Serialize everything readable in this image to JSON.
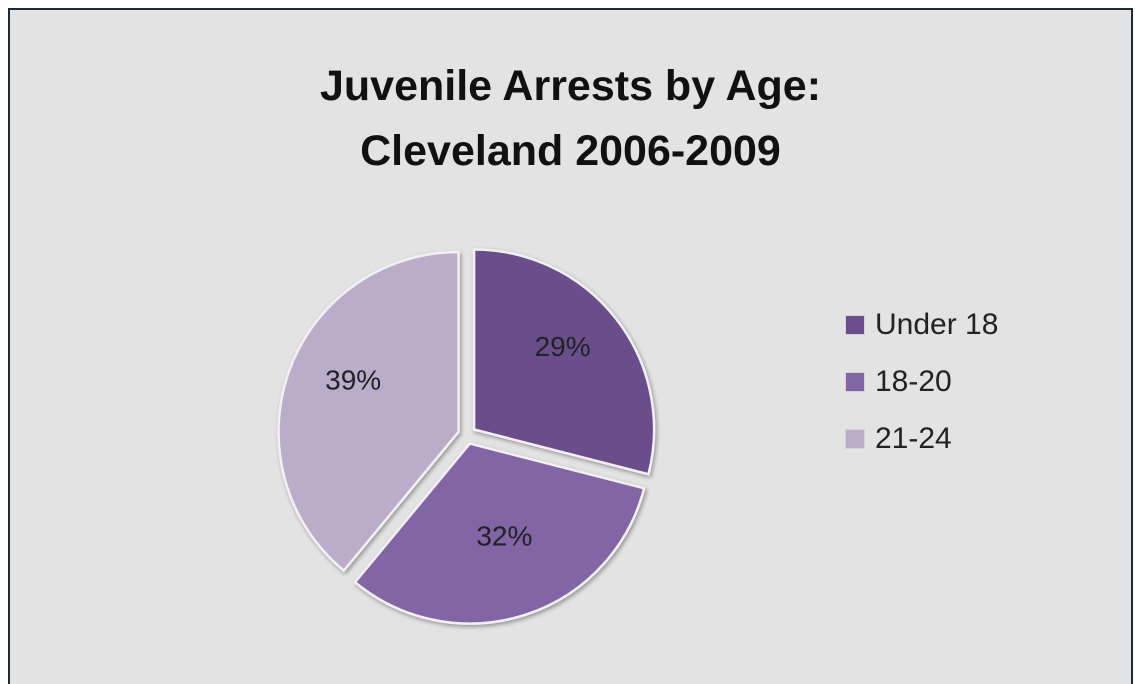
{
  "chart_data": {
    "type": "pie",
    "title_lines": [
      "Juvenile Arrests by Age:",
      "Cleveland 2006-2009"
    ],
    "categories": [
      "Under 18",
      "18-20",
      "21-24"
    ],
    "values": [
      29,
      32,
      39
    ],
    "data_labels": [
      "29%",
      "32%",
      "39%"
    ],
    "colors": [
      "#6b4e8b",
      "#8165a5",
      "#bbadca"
    ],
    "exploded": true,
    "legend_position": "right"
  }
}
